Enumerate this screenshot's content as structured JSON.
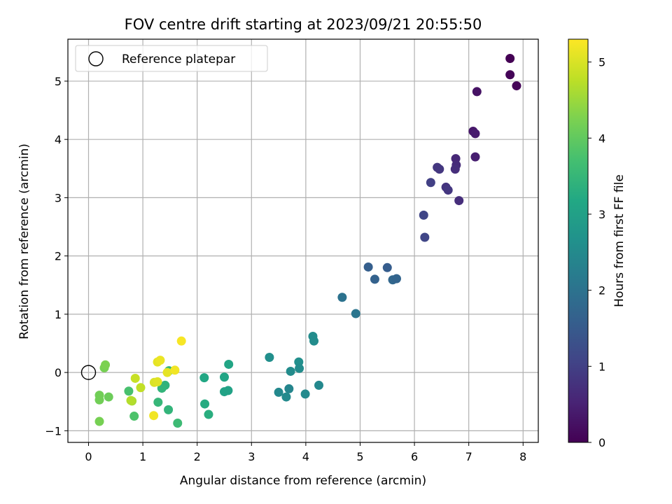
{
  "chart_data": {
    "type": "scatter",
    "title": "FOV centre drift starting at 2023/09/21 20:55:50",
    "xlabel": "Angular distance from reference (arcmin)",
    "ylabel": "Rotation from reference (arcmin)",
    "xlim": [
      -0.38,
      8.28
    ],
    "ylim": [
      -1.2,
      5.72
    ],
    "xticks": [
      0,
      1,
      2,
      3,
      4,
      5,
      6,
      7,
      8
    ],
    "yticks": [
      -1,
      0,
      1,
      2,
      3,
      4,
      5
    ],
    "grid": true,
    "legend": {
      "placement": "top-left",
      "label": "Reference platepar"
    },
    "reference_point": {
      "x": 0,
      "y": 0
    },
    "colormap": "viridis",
    "colorbar": {
      "label": "Hours from first FF file",
      "min": 0,
      "max": 5.3,
      "ticks": [
        0,
        1,
        2,
        3,
        4,
        5
      ]
    },
    "points": [
      {
        "x": 7.76,
        "y": 5.39,
        "c": 0.0
      },
      {
        "x": 7.76,
        "y": 5.11,
        "c": 0.05
      },
      {
        "x": 7.88,
        "y": 4.92,
        "c": 0.05
      },
      {
        "x": 7.15,
        "y": 4.82,
        "c": 0.25
      },
      {
        "x": 7.08,
        "y": 4.14,
        "c": 0.35
      },
      {
        "x": 7.12,
        "y": 4.1,
        "c": 0.4
      },
      {
        "x": 7.12,
        "y": 3.7,
        "c": 0.45
      },
      {
        "x": 6.76,
        "y": 3.67,
        "c": 0.6
      },
      {
        "x": 6.77,
        "y": 3.56,
        "c": 0.65
      },
      {
        "x": 6.75,
        "y": 3.49,
        "c": 0.7
      },
      {
        "x": 6.42,
        "y": 3.52,
        "c": 0.85
      },
      {
        "x": 6.46,
        "y": 3.49,
        "c": 0.85
      },
      {
        "x": 6.3,
        "y": 3.26,
        "c": 1.0
      },
      {
        "x": 6.58,
        "y": 3.18,
        "c": 0.8
      },
      {
        "x": 6.62,
        "y": 3.13,
        "c": 0.85
      },
      {
        "x": 6.82,
        "y": 2.95,
        "c": 0.7
      },
      {
        "x": 6.17,
        "y": 2.7,
        "c": 1.1
      },
      {
        "x": 6.19,
        "y": 2.32,
        "c": 1.1
      },
      {
        "x": 5.15,
        "y": 1.81,
        "c": 1.6
      },
      {
        "x": 5.5,
        "y": 1.8,
        "c": 1.55
      },
      {
        "x": 5.27,
        "y": 1.6,
        "c": 1.65
      },
      {
        "x": 5.6,
        "y": 1.59,
        "c": 1.75
      },
      {
        "x": 5.67,
        "y": 1.61,
        "c": 1.7
      },
      {
        "x": 4.67,
        "y": 1.29,
        "c": 2.0
      },
      {
        "x": 4.92,
        "y": 1.01,
        "c": 2.05
      },
      {
        "x": 4.13,
        "y": 0.62,
        "c": 2.55
      },
      {
        "x": 4.15,
        "y": 0.54,
        "c": 2.55
      },
      {
        "x": 3.33,
        "y": 0.26,
        "c": 2.6
      },
      {
        "x": 3.87,
        "y": 0.18,
        "c": 2.6
      },
      {
        "x": 3.72,
        "y": 0.02,
        "c": 2.55
      },
      {
        "x": 3.88,
        "y": 0.07,
        "c": 2.55
      },
      {
        "x": 3.5,
        "y": -0.34,
        "c": 2.45
      },
      {
        "x": 3.69,
        "y": -0.28,
        "c": 2.4
      },
      {
        "x": 3.64,
        "y": -0.42,
        "c": 2.5
      },
      {
        "x": 3.99,
        "y": -0.37,
        "c": 2.5
      },
      {
        "x": 4.24,
        "y": -0.22,
        "c": 2.45
      },
      {
        "x": 2.58,
        "y": 0.14,
        "c": 3.1
      },
      {
        "x": 2.13,
        "y": -0.09,
        "c": 3.15
      },
      {
        "x": 2.5,
        "y": -0.08,
        "c": 3.1
      },
      {
        "x": 2.5,
        "y": -0.33,
        "c": 3.05
      },
      {
        "x": 2.57,
        "y": -0.31,
        "c": 3.05
      },
      {
        "x": 2.14,
        "y": -0.54,
        "c": 3.25
      },
      {
        "x": 2.21,
        "y": -0.72,
        "c": 3.3
      },
      {
        "x": 1.48,
        "y": 0.03,
        "c": 3.45
      },
      {
        "x": 1.41,
        "y": -0.22,
        "c": 3.4
      },
      {
        "x": 1.35,
        "y": -0.27,
        "c": 3.45
      },
      {
        "x": 1.28,
        "y": -0.51,
        "c": 3.5
      },
      {
        "x": 1.47,
        "y": -0.64,
        "c": 3.45
      },
      {
        "x": 1.64,
        "y": -0.87,
        "c": 3.6
      },
      {
        "x": 0.74,
        "y": -0.32,
        "c": 3.75
      },
      {
        "x": 0.84,
        "y": -0.75,
        "c": 3.8
      },
      {
        "x": 0.29,
        "y": 0.08,
        "c": 4.2
      },
      {
        "x": 0.31,
        "y": 0.13,
        "c": 4.25
      },
      {
        "x": 0.37,
        "y": -0.42,
        "c": 4.1
      },
      {
        "x": 0.2,
        "y": -0.39,
        "c": 4.15
      },
      {
        "x": 0.2,
        "y": -0.47,
        "c": 4.15
      },
      {
        "x": 0.2,
        "y": -0.84,
        "c": 4.2
      },
      {
        "x": 0.8,
        "y": -0.49,
        "c": 4.6
      },
      {
        "x": 0.78,
        "y": -0.48,
        "c": 4.7
      },
      {
        "x": 0.86,
        "y": -0.1,
        "c": 4.85
      },
      {
        "x": 0.96,
        "y": -0.26,
        "c": 4.8
      },
      {
        "x": 1.21,
        "y": -0.17,
        "c": 5.0
      },
      {
        "x": 1.27,
        "y": -0.16,
        "c": 5.05
      },
      {
        "x": 1.27,
        "y": 0.18,
        "c": 5.1
      },
      {
        "x": 1.32,
        "y": 0.21,
        "c": 5.15
      },
      {
        "x": 1.45,
        "y": 0.0,
        "c": 5.1
      },
      {
        "x": 1.59,
        "y": 0.04,
        "c": 5.2
      },
      {
        "x": 1.71,
        "y": 0.54,
        "c": 5.25
      },
      {
        "x": 1.2,
        "y": -0.74,
        "c": 5.2
      }
    ]
  }
}
